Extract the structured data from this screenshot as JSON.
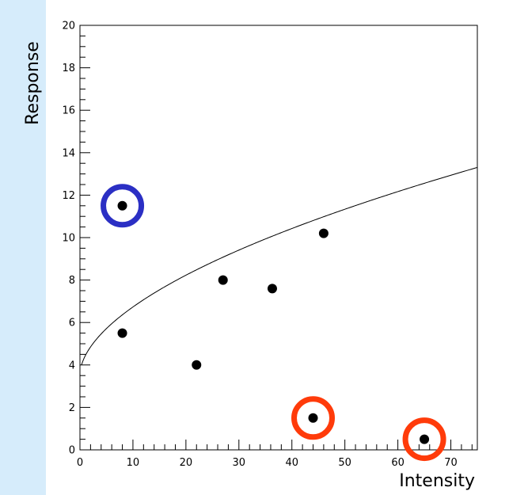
{
  "chart_data": {
    "type": "scatter",
    "title": "",
    "xlabel": "Intensity",
    "ylabel": "Response",
    "xlim": [
      0,
      75
    ],
    "ylim": [
      0,
      20
    ],
    "x_ticks": [
      0,
      10,
      20,
      30,
      40,
      50,
      60,
      70
    ],
    "y_ticks": [
      0,
      2,
      4,
      6,
      8,
      10,
      12,
      14,
      16,
      18,
      20
    ],
    "grid": false,
    "legend": "none",
    "points": [
      {
        "x": 8,
        "y": 11.5
      },
      {
        "x": 8,
        "y": 5.5
      },
      {
        "x": 22,
        "y": 4.0
      },
      {
        "x": 27,
        "y": 8.0
      },
      {
        "x": 36.3,
        "y": 7.6
      },
      {
        "x": 46,
        "y": 10.2
      },
      {
        "x": 44,
        "y": 1.5
      },
      {
        "x": 65,
        "y": 0.5
      }
    ],
    "highlights": [
      {
        "point_index": 0,
        "color": "#2b2fc4"
      },
      {
        "point_index": 6,
        "color": "#ff3b0a"
      },
      {
        "point_index": 7,
        "color": "#ff3b0a"
      }
    ],
    "fit_curve": {
      "type": "power",
      "a": 3.55,
      "b": 0.15,
      "k": 0.556,
      "x_range": [
        0.3,
        75
      ]
    }
  }
}
